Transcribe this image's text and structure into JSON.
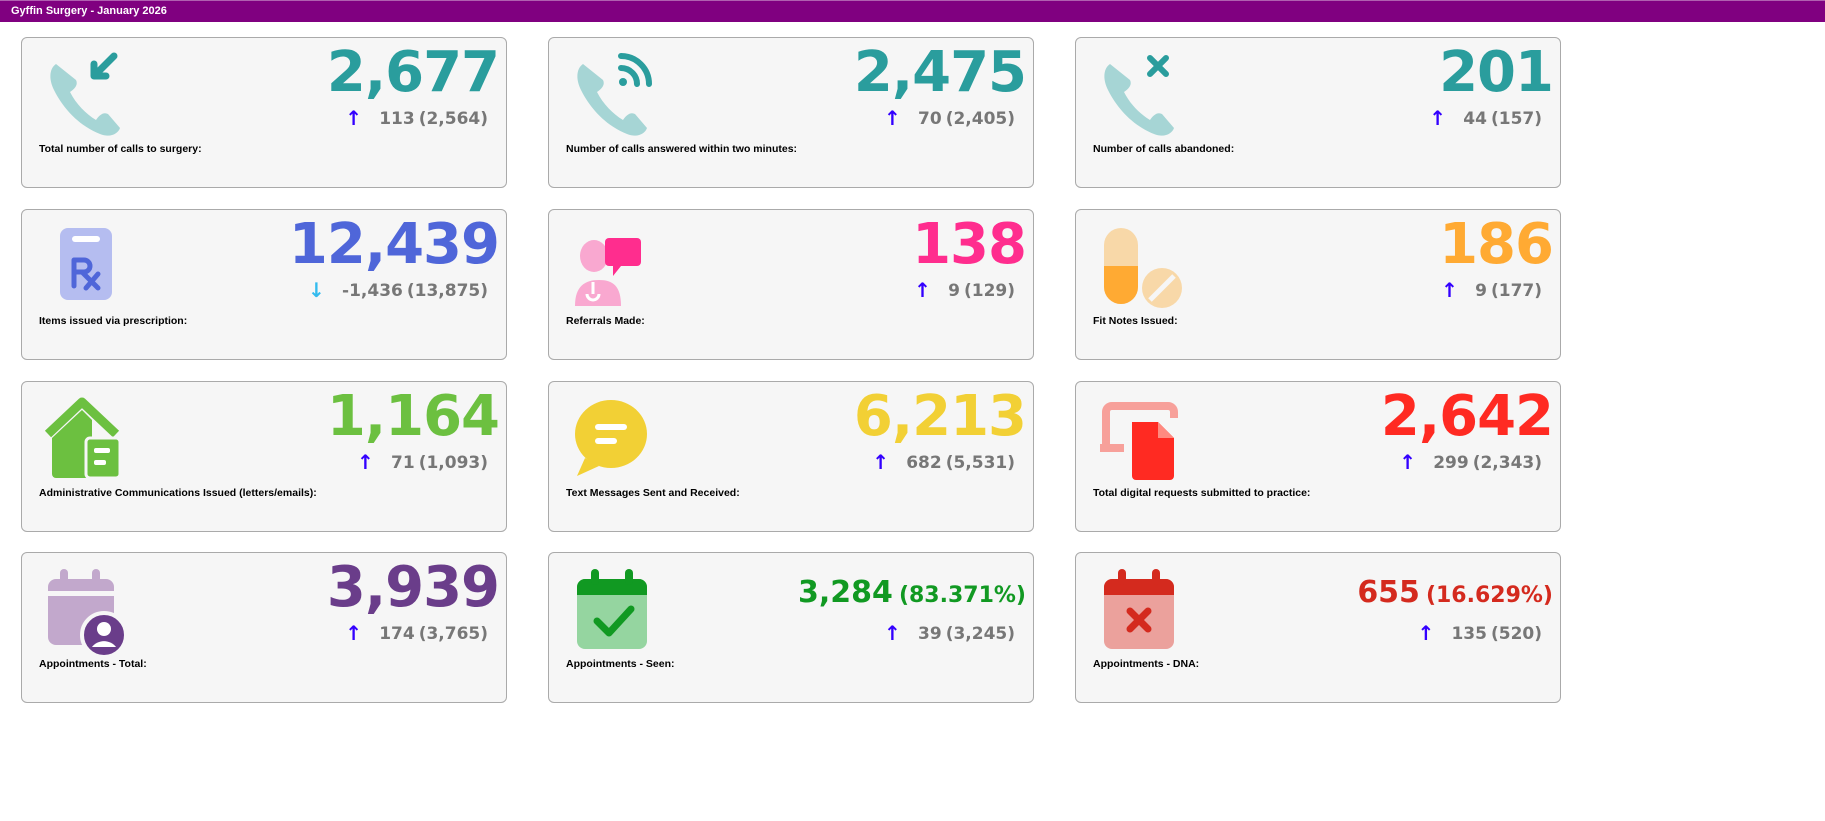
{
  "header": {
    "title": "Gyffin Surgery - January 2026"
  },
  "colors": {
    "header_bg": "#800080",
    "arrow_up": "#3300ff",
    "arrow_down": "#33bbee",
    "change_text": "#777777"
  },
  "cards": [
    {
      "label": "Total number of calls to surgery:",
      "value": "2,677",
      "change": "113",
      "previous": "(2,564)",
      "direction": "up",
      "color": "#2a9d9d",
      "icon": "phone-incoming-icon"
    },
    {
      "label": "Number of calls answered within two minutes:",
      "value": "2,475",
      "change": "70",
      "previous": "(2,405)",
      "direction": "up",
      "color": "#2a9d9d",
      "icon": "phone-answered-icon"
    },
    {
      "label": "Number of calls abandoned:",
      "value": "201",
      "change": "44",
      "previous": "(157)",
      "direction": "up",
      "color": "#2a9d9d",
      "icon": "phone-missed-icon"
    },
    {
      "label": "Items issued via prescription:",
      "value": "12,439",
      "change": "-1,436",
      "previous": "(13,875)",
      "direction": "down",
      "color": "#4f66d9",
      "icon": "prescription-icon"
    },
    {
      "label": "Referrals Made:",
      "value": "138",
      "change": "9",
      "previous": "(129)",
      "direction": "up",
      "color": "#ff2d8e",
      "icon": "doctor-chat-icon"
    },
    {
      "label": "Fit Notes Issued:",
      "value": "186",
      "change": "9",
      "previous": "(177)",
      "direction": "up",
      "color": "#ffaa33",
      "icon": "pills-icon"
    },
    {
      "label": "Administrative Communications Issued (letters/emails):",
      "value": "1,164",
      "change": "71",
      "previous": "(1,093)",
      "direction": "up",
      "color": "#6cc040",
      "icon": "house-letter-icon"
    },
    {
      "label": "Text Messages Sent and Received:",
      "value": "6,213",
      "change": "682",
      "previous": "(5,531)",
      "direction": "up",
      "color": "#f2d035",
      "icon": "chat-bubble-icon"
    },
    {
      "label": "Total digital requests submitted to practice:",
      "value": "2,642",
      "change": "299",
      "previous": "(2,343)",
      "direction": "up",
      "color": "#ff2a22",
      "icon": "digital-document-icon"
    },
    {
      "label": "Appointments - Total:",
      "value": "3,939",
      "change": "174",
      "previous": "(3,765)",
      "direction": "up",
      "color": "#6a3d8a",
      "icon": "calendar-user-icon"
    },
    {
      "label": "Appointments - Seen:",
      "value": "3,284",
      "percent": "(83.371%)",
      "change": "39",
      "previous": "(3,245)",
      "direction": "up",
      "color": "#119922",
      "icon": "calendar-check-icon"
    },
    {
      "label": "Appointments - DNA:",
      "value": "655",
      "percent": "(16.629%)",
      "change": "135",
      "previous": "(520)",
      "direction": "up",
      "color": "#d42a1e",
      "icon": "calendar-cross-icon"
    }
  ]
}
